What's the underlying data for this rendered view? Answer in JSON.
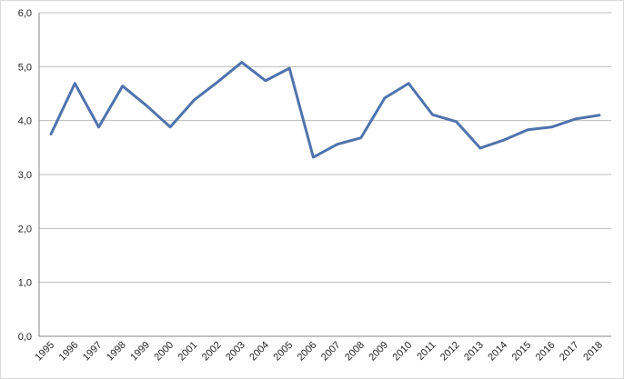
{
  "chart_data": {
    "type": "line",
    "categories": [
      "1995",
      "1996",
      "1997",
      "1998",
      "1999",
      "2000",
      "2001",
      "2002",
      "2003",
      "2004",
      "2005",
      "2006",
      "2007",
      "2008",
      "2009",
      "2010",
      "2011",
      "2012",
      "2013",
      "2014",
      "2015",
      "2016",
      "2017",
      "2018"
    ],
    "values": [
      3.75,
      4.69,
      3.88,
      4.64,
      4.28,
      3.88,
      4.38,
      4.72,
      5.08,
      4.74,
      4.97,
      3.32,
      3.56,
      3.68,
      4.42,
      4.69,
      4.11,
      3.98,
      3.49,
      3.64,
      3.83,
      3.88,
      4.03,
      4.1
    ],
    "color": "#4e73ad",
    "ylim": [
      0,
      6
    ],
    "yticks": [
      {
        "value": 0,
        "label": "0,0"
      },
      {
        "value": 1,
        "label": "1,0"
      },
      {
        "value": 2,
        "label": "2,0"
      },
      {
        "value": 3,
        "label": "3,0"
      },
      {
        "value": 4,
        "label": "4,0"
      },
      {
        "value": 5,
        "label": "5,0"
      },
      {
        "value": 6,
        "label": "6,0"
      }
    ],
    "grid": true
  }
}
